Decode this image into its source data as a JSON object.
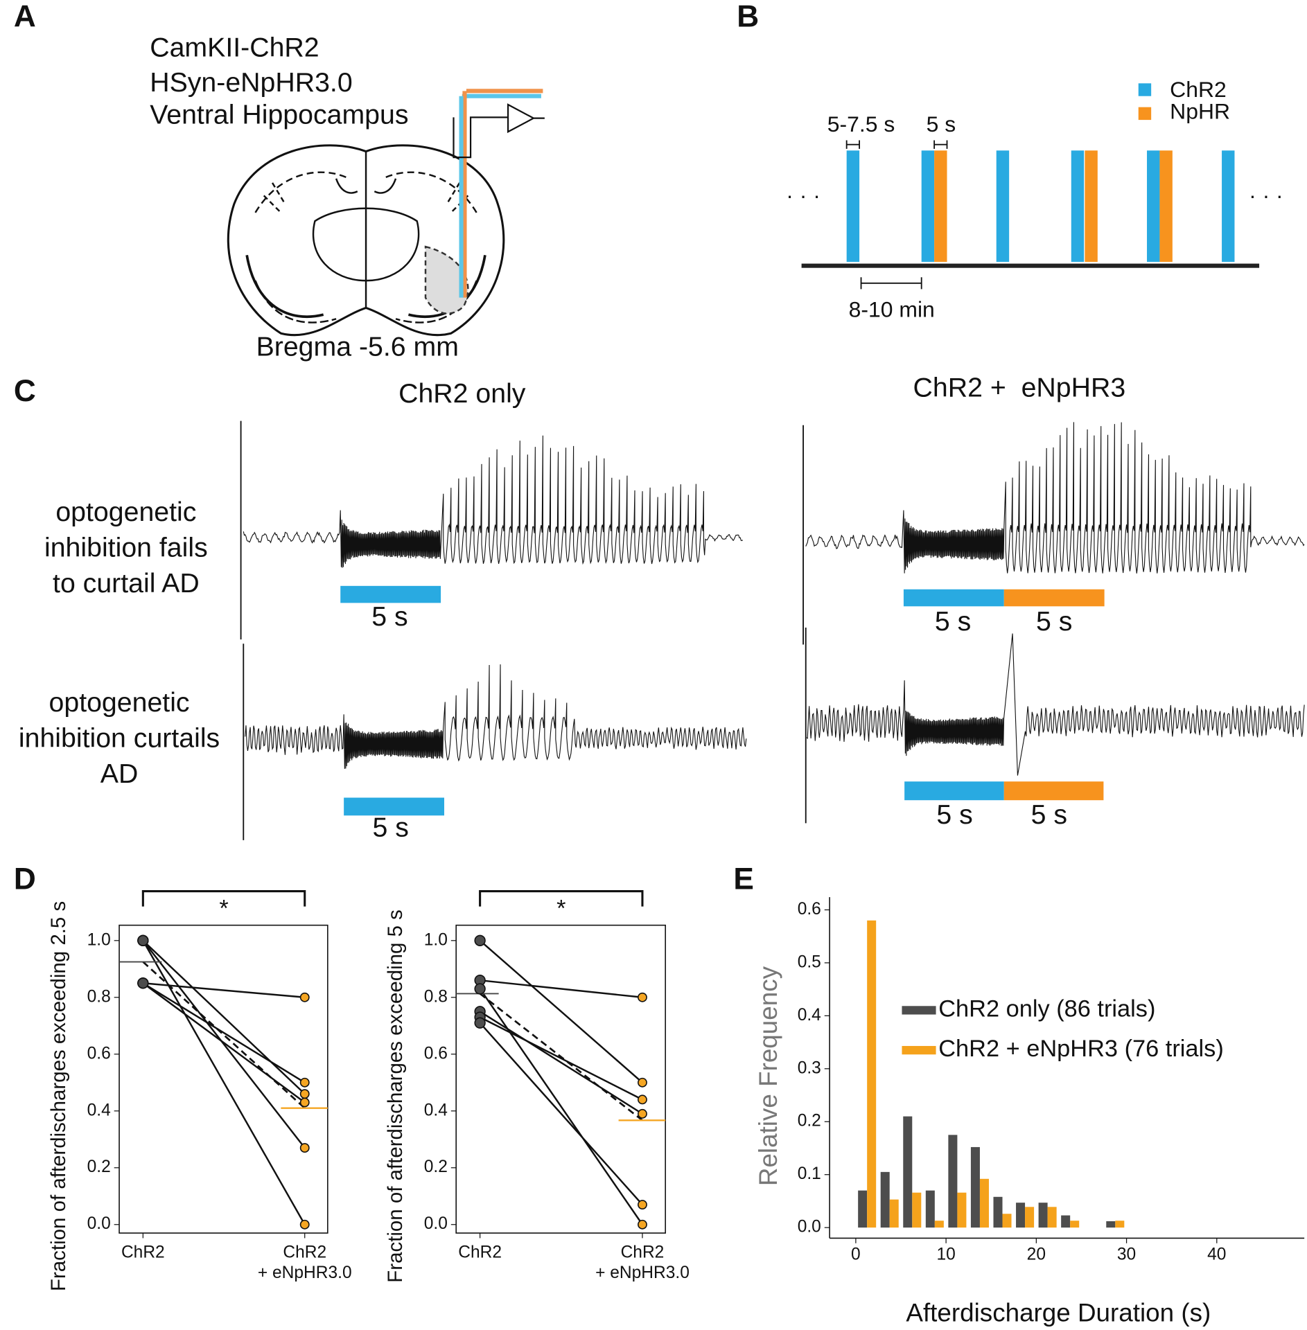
{
  "panel_labels": [
    "A",
    "B",
    "C",
    "D",
    "E"
  ],
  "panel_a": {
    "lines": [
      "CamKII-ChR2",
      "HSyn-eNpHR3.0",
      "Ventral Hippocampus"
    ],
    "bregma": "Bregma -5.6 mm"
  },
  "panel_b": {
    "legend": [
      "ChR2",
      "NpHR"
    ],
    "colors": [
      "#29aae1",
      "#f7931e"
    ],
    "pulse_width": "5-7.5 s",
    "npHR_width": "5 s",
    "interval": "8-10 min",
    "ellipsis": "· · ·"
  },
  "panel_c": {
    "columns": [
      "ChR2 only",
      "ChR2 +  eNpHR3"
    ],
    "rows": [
      [
        "optogenetic",
        "inhibition fails",
        "to curtail AD"
      ],
      [
        "optogenetic",
        "inhibition curtails",
        "AD"
      ]
    ],
    "duration": "5 s"
  },
  "chart_data": [
    {
      "type": "paired",
      "categories": [
        "ChR2",
        "ChR2\n+ eNpHR3.0"
      ],
      "ylabel": "Fraction of afterdischarges exceeding 2.5 s",
      "pairs": [
        [
          1.0,
          0.0
        ],
        [
          1.0,
          0.27
        ],
        [
          1.0,
          0.46
        ],
        [
          0.85,
          0.8
        ],
        [
          0.85,
          0.5
        ],
        [
          0.85,
          0.43
        ]
      ],
      "means": [
        0.925,
        0.41
      ],
      "colors": [
        "#4d4d4d",
        "#f5a623"
      ],
      "annotation": "*",
      "ylim": [
        -0.03,
        1.054
      ],
      "yticks": [
        {
          "value": 0,
          "label": "0.0"
        },
        0.2,
        0.4,
        0.6,
        0.8,
        {
          "value": 1,
          "label": "1.0"
        }
      ]
    },
    {
      "type": "paired",
      "categories": [
        "ChR2",
        "ChR2\n+ eNpHR3.0"
      ],
      "ylabel": "Fraction of afterdischarges exceeding 5 s",
      "pairs": [
        [
          1.0,
          0.5
        ],
        [
          0.86,
          0.8
        ],
        [
          0.83,
          0.0
        ],
        [
          0.75,
          0.39
        ],
        [
          0.73,
          0.44
        ],
        [
          0.71,
          0.07
        ]
      ],
      "means": [
        0.813,
        0.367
      ],
      "colors": [
        "#4d4d4d",
        "#f5a623"
      ],
      "annotation": "*",
      "ylim": [
        -0.03,
        1.054
      ],
      "yticks": [
        {
          "value": 0,
          "label": "0.0"
        },
        0.2,
        0.4,
        0.6,
        0.8,
        {
          "value": 1,
          "label": "1.0"
        }
      ]
    },
    {
      "type": "histogram",
      "xlabel": "Afterdischarge Duration (s)",
      "ylabel": "Relative Frequency",
      "bins": [
        0,
        2.5,
        5,
        7.5,
        10,
        12.5,
        15,
        17.5,
        20,
        22.5,
        25,
        27.5,
        30,
        32.5,
        35,
        37.5,
        40,
        42.5,
        45,
        47.5
      ],
      "series": [
        {
          "name": "ChR2 only (86 trials)",
          "color": "#4d4d4d",
          "values": [
            0.07,
            0.105,
            0.21,
            0.07,
            0.175,
            0.152,
            0.058,
            0.047,
            0.047,
            0.023,
            0,
            0.012,
            0,
            0,
            0,
            0,
            0,
            0,
            0
          ]
        },
        {
          "name": "ChR2 + eNpHR3 (76 trials)",
          "color": "#f5a21b",
          "values": [
            0.58,
            0.053,
            0.066,
            0.013,
            0.066,
            0.092,
            0.026,
            0.039,
            0.039,
            0.013,
            0,
            0.013,
            0,
            0,
            0,
            0,
            0,
            0,
            0
          ]
        }
      ],
      "xlim": [
        -2.9,
        49.7
      ],
      "ylim": [
        -0.02,
        0.624
      ],
      "xticks": [
        0,
        10,
        20,
        30,
        40
      ],
      "yticks": [
        {
          "value": 0,
          "label": "0.0"
        },
        0.1,
        0.2,
        0.3,
        0.4,
        0.5,
        0.6
      ]
    }
  ]
}
